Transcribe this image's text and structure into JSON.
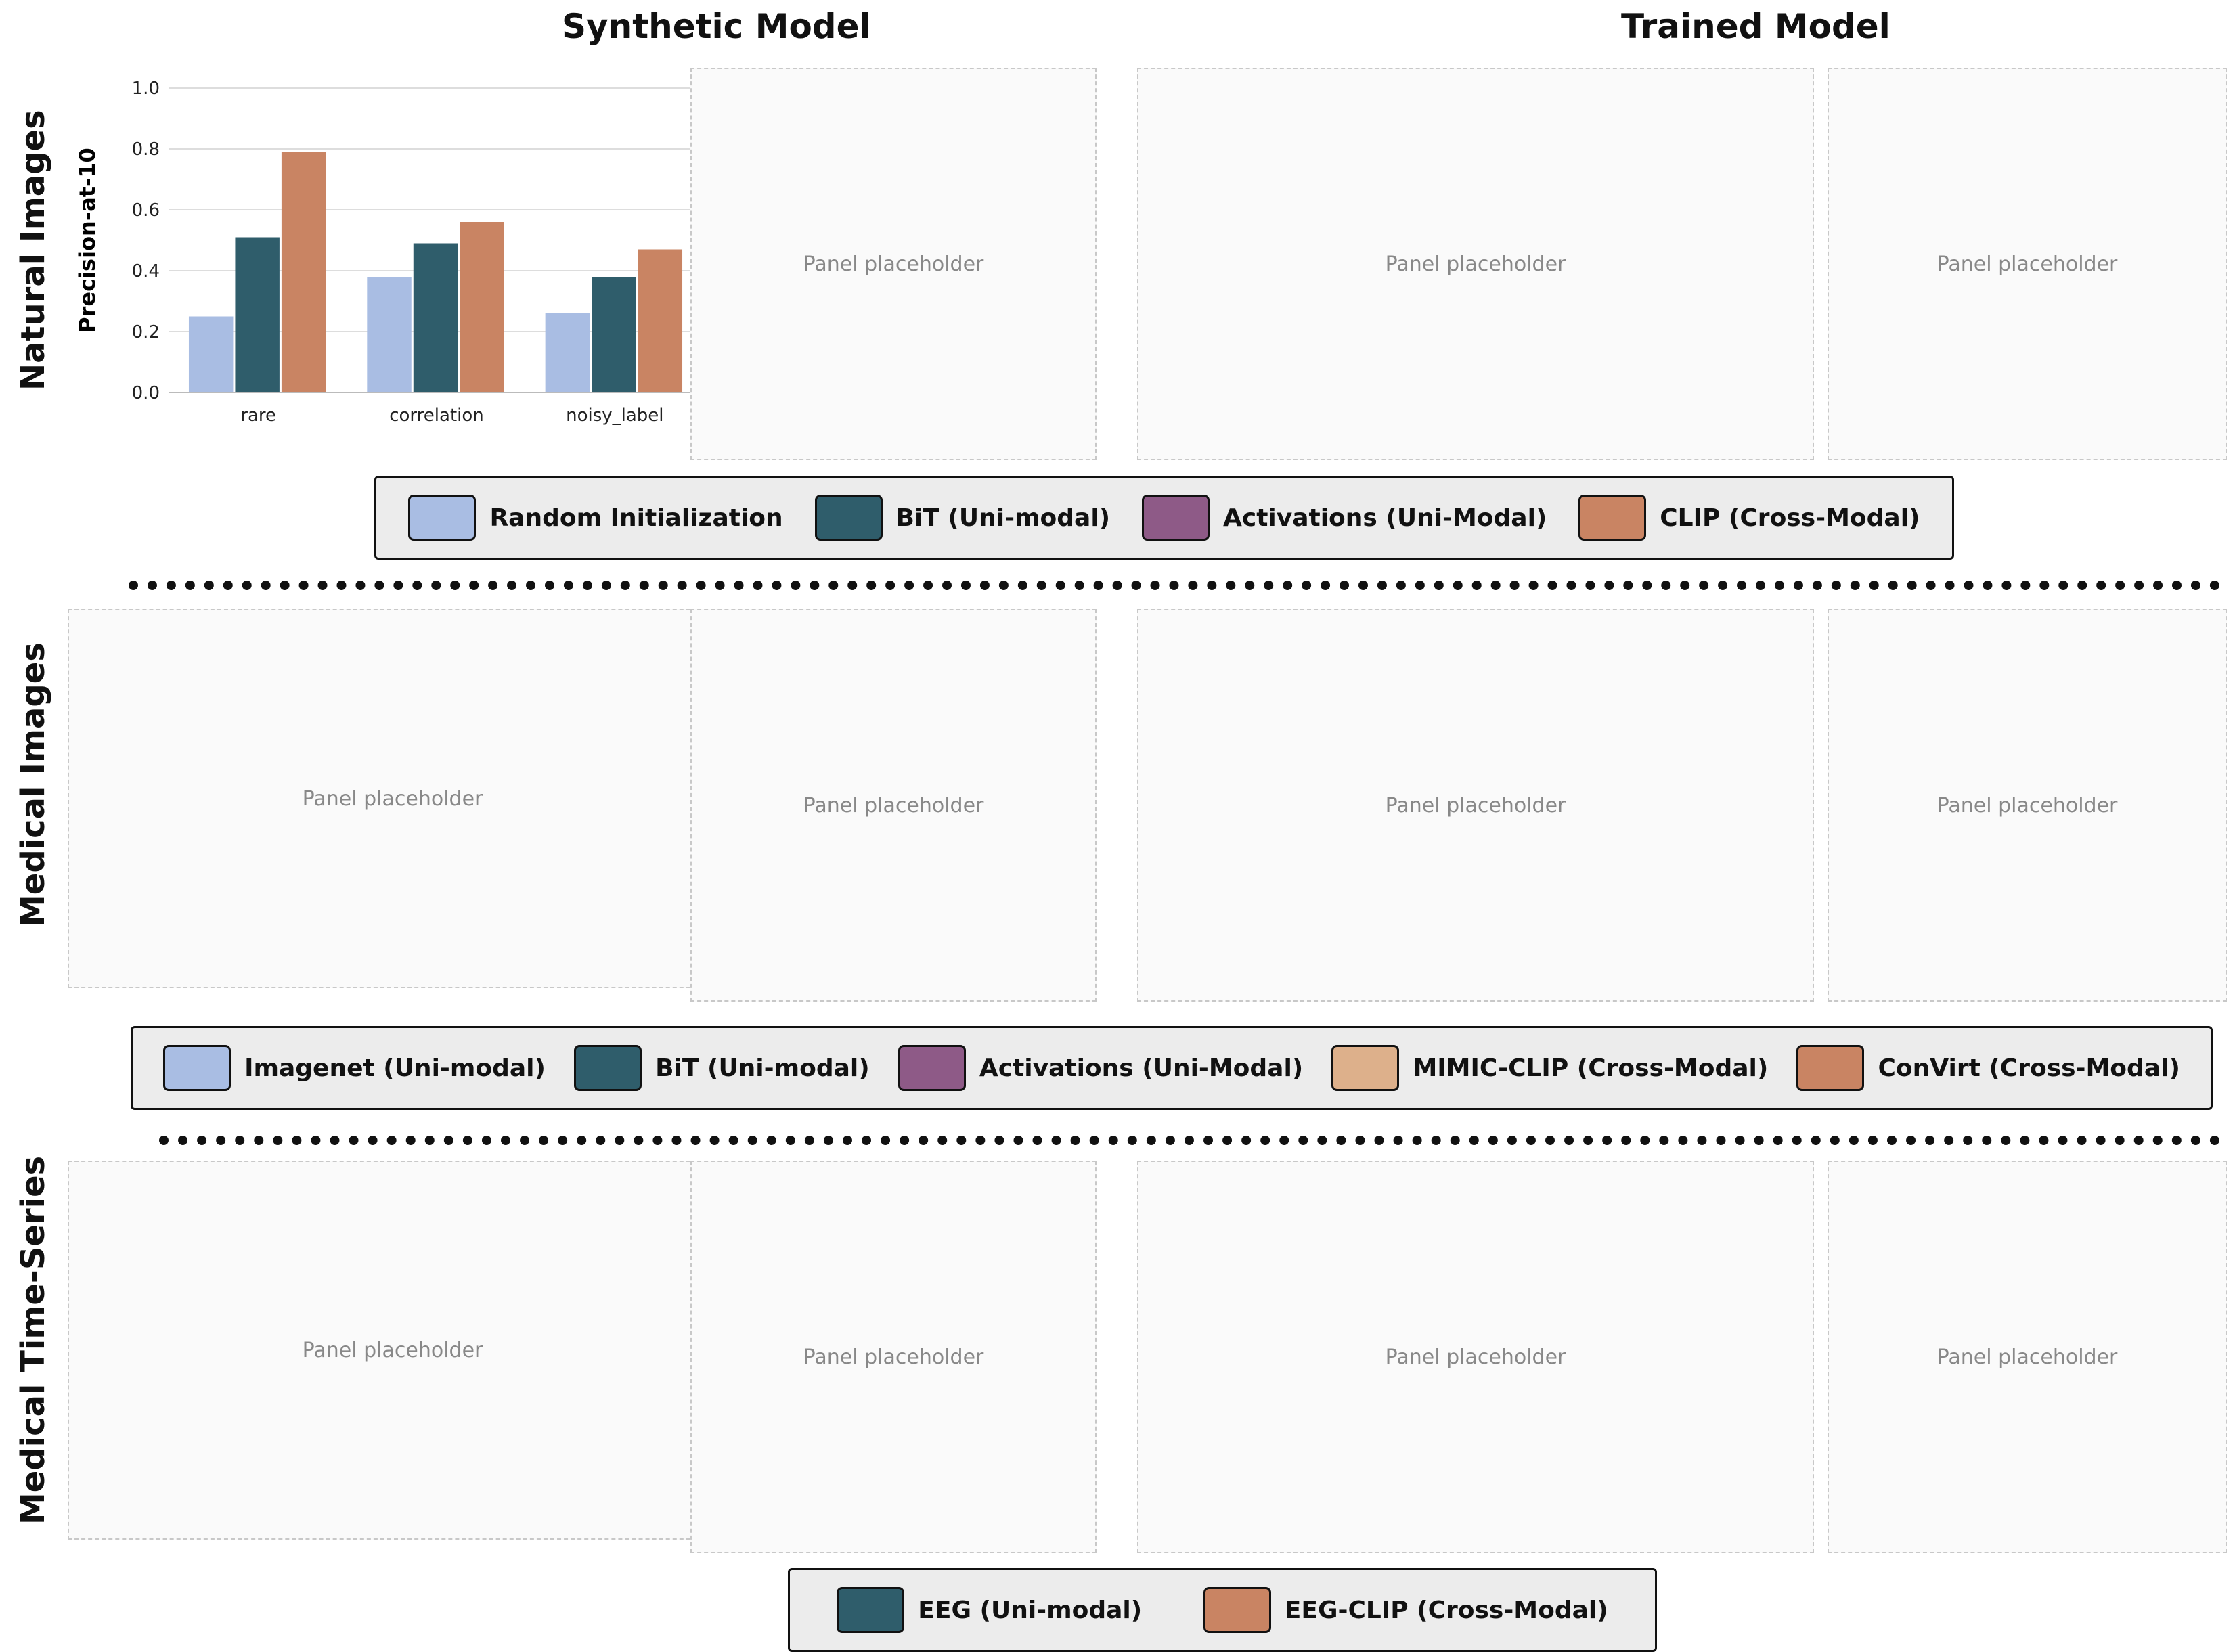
{
  "column_titles": {
    "synthetic": "Synthetic Model",
    "trained": "Trained Model"
  },
  "row_titles": {
    "natural": "Natural Images",
    "medical": "Medical Images",
    "timeseries": "Medical Time-Series"
  },
  "legends": {
    "natural": [
      {
        "label": "Random Initialization",
        "color": "#a9bde3"
      },
      {
        "label": "BiT (Uni-modal)",
        "color": "#2f5d6b"
      },
      {
        "label": "Activations (Uni-Modal)",
        "color": "#8e5a87"
      },
      {
        "label": "CLIP (Cross-Modal)",
        "color": "#c98463"
      }
    ],
    "medical": [
      {
        "label": "Imagenet (Uni-modal)",
        "color": "#a9bde3"
      },
      {
        "label": "BiT (Uni-modal)",
        "color": "#2f5d6b"
      },
      {
        "label": "Activations (Uni-Modal)",
        "color": "#8e5a87"
      },
      {
        "label": "MIMIC-CLIP (Cross-Modal)",
        "color": "#ddb08b"
      },
      {
        "label": "ConVirt (Cross-Modal)",
        "color": "#c98463"
      }
    ],
    "timeseries": [
      {
        "label": "EEG (Uni-modal)",
        "color": "#2f5d6b"
      },
      {
        "label": "EEG-CLIP (Cross-Modal)",
        "color": "#c98463"
      }
    ]
  },
  "placeholder_label": "Panel placeholder",
  "chart_data": {
    "type": "bar",
    "title": "",
    "xlabel": "",
    "ylabel": "Precision-at-10",
    "ylim": [
      0,
      1.0
    ],
    "yticks": [
      "0.0",
      "0.2",
      "0.4",
      "0.6",
      "0.8",
      "1.0"
    ],
    "categories": [
      "rare",
      "correlation",
      "noisy_label"
    ],
    "series": [
      {
        "name": "Random Initialization",
        "color": "#a9bde3",
        "values": [
          0.25,
          0.38,
          0.26
        ]
      },
      {
        "name": "BiT (Uni-modal)",
        "color": "#2f5d6b",
        "values": [
          0.51,
          0.49,
          0.38
        ]
      },
      {
        "name": "CLIP (Cross-Modal)",
        "color": "#c98463",
        "values": [
          0.79,
          0.56,
          0.47
        ]
      }
    ]
  }
}
